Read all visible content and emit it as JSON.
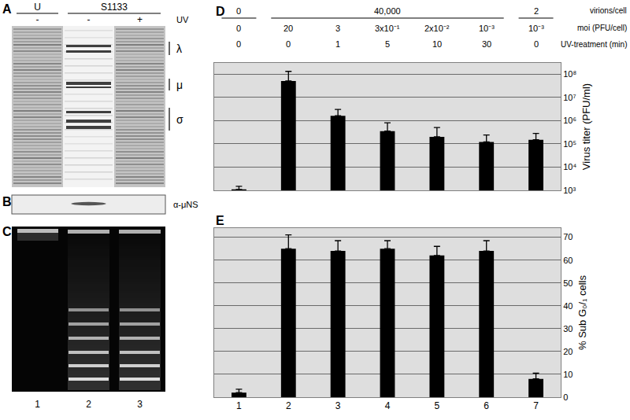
{
  "gels": {
    "A": {
      "label": "A",
      "groups": [
        {
          "text": "U",
          "lanes": 1
        },
        {
          "text": "S1133",
          "lanes": 2
        }
      ],
      "lane_marks": [
        "-",
        "-",
        "+"
      ],
      "treatment": "UV",
      "bands": [
        "λ",
        "μ",
        "σ"
      ]
    },
    "B": {
      "label": "B",
      "antibody": "α-μNS"
    },
    "C": {
      "label": "C",
      "lanes": [
        "1",
        "2",
        "3"
      ]
    }
  },
  "header": {
    "rows": [
      {
        "label": "virions/cell",
        "groups": [
          {
            "text": "0",
            "lanes": 1
          },
          {
            "text": "40,000",
            "lanes": 5
          },
          {
            "text": "2",
            "lanes": 1
          }
        ]
      },
      {
        "label": "moi (PFU/cell)",
        "values": [
          "0",
          "20",
          "3",
          "3x10⁻¹",
          "2x10⁻²",
          "10⁻³",
          "10⁻³"
        ]
      },
      {
        "label": "UV-treatment (min)",
        "values": [
          0,
          0,
          1,
          5,
          10,
          30,
          0
        ]
      }
    ]
  },
  "chart_data": [
    {
      "type": "bar",
      "title": "D",
      "categories": [
        null,
        null,
        null,
        null,
        null,
        null,
        null
      ],
      "values": [
        1100,
        50000000,
        1600000,
        350000,
        200000,
        120000,
        150000
      ],
      "errors": [
        400,
        80000000,
        1400000,
        450000,
        300000,
        120000,
        130000
      ],
      "color": "#000000",
      "y_label": "Virus titer (PFU/ml)",
      "log": "y",
      "ylim": [
        1000,
        300000000
      ],
      "yticks": [
        {
          "value": 1000,
          "label": "10³"
        },
        {
          "value": 10000,
          "label": "10⁴"
        },
        {
          "value": 100000,
          "label": "10⁵"
        },
        {
          "value": 1000000,
          "label": "10⁶"
        },
        {
          "value": 10000000,
          "label": "10⁷"
        },
        {
          "value": 100000000,
          "label": "10⁸"
        }
      ],
      "grid": true,
      "tick_labels": "y"
    },
    {
      "type": "bar",
      "title": "E",
      "categories": [
        "1",
        "2",
        "3",
        "4",
        "5",
        "6",
        "7"
      ],
      "values": [
        2,
        65,
        64,
        65,
        62,
        64,
        8
      ],
      "errors": [
        1.5,
        6,
        4.5,
        3.5,
        4,
        4.5,
        2.5
      ],
      "color": "#000000",
      "y_label": "% Sub G₀/₁ cells",
      "ylim": [
        0,
        74
      ],
      "yticks": [
        0,
        10,
        20,
        30,
        40,
        50,
        60,
        70
      ],
      "grid": true
    }
  ]
}
